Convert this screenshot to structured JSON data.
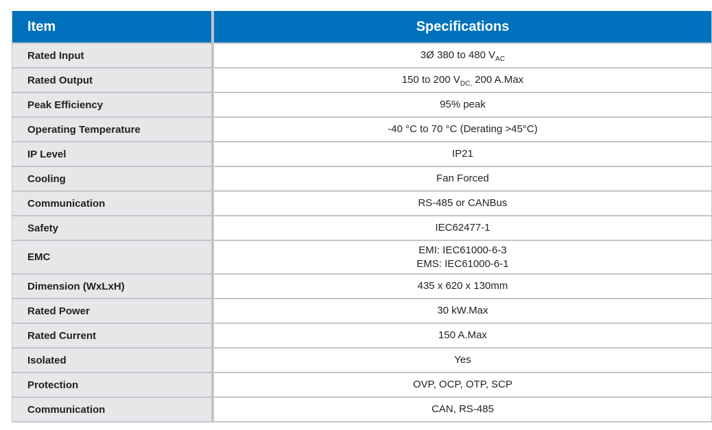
{
  "colors": {
    "header_bg": "#0072bd",
    "header_text": "#ffffff",
    "label_bg": "#e7e7e9",
    "border": "#c3c5ca",
    "label_text": "#1f1f1f",
    "value_text": "#232323",
    "page_bg": "#ffffff"
  },
  "table": {
    "header": {
      "item_label": "Item",
      "specifications_label": "Specifications"
    },
    "rows": [
      {
        "item": "Rated Input",
        "value": [
          {
            "t": "3Ø 380 to 480 V"
          },
          {
            "t": "AC",
            "sub": true
          }
        ]
      },
      {
        "item": "Rated Output",
        "value": [
          {
            "t": "150 to 200 V"
          },
          {
            "t": "DC,",
            "sub": true
          },
          {
            "t": " 200 A.Max"
          }
        ]
      },
      {
        "item": "Peak Efficiency",
        "value": [
          {
            "t": "95% peak"
          }
        ]
      },
      {
        "item": "Operating Temperature",
        "value": [
          {
            "t": "-40 °C to 70 °C (Derating >45°C)"
          }
        ]
      },
      {
        "item": "IP Level",
        "value": [
          {
            "t": "IP21"
          }
        ]
      },
      {
        "item": "Cooling",
        "value": [
          {
            "t": "Fan Forced"
          }
        ]
      },
      {
        "item": "Communication",
        "value": [
          {
            "t": "RS-485 or CANBus"
          }
        ]
      },
      {
        "item": "Safety",
        "value": [
          {
            "t": "IEC62477-1"
          }
        ]
      },
      {
        "item": "EMC",
        "value": [
          {
            "t": "EMI: IEC61000-6-3"
          },
          {
            "br": true
          },
          {
            "t": "EMS: IEC61000-6-1"
          }
        ]
      },
      {
        "item": "Dimension (WxLxH)",
        "value": [
          {
            "t": "435 x 620 x 130mm"
          }
        ]
      },
      {
        "item": "Rated Power",
        "value": [
          {
            "t": "30 kW.Max"
          }
        ]
      },
      {
        "item": "Rated Current",
        "value": [
          {
            "t": "150 A.Max"
          }
        ]
      },
      {
        "item": "Isolated",
        "value": [
          {
            "t": "Yes"
          }
        ]
      },
      {
        "item": "Protection",
        "value": [
          {
            "t": "OVP, OCP, OTP, SCP"
          }
        ]
      },
      {
        "item": "Communication",
        "value": [
          {
            "t": "CAN, RS-485"
          }
        ]
      }
    ]
  }
}
